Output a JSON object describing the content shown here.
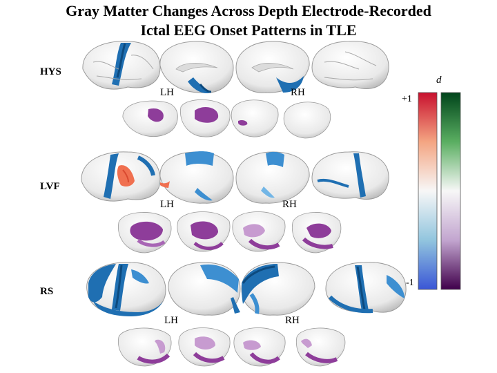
{
  "figure": {
    "title_line1": "Gray Matter Changes Across Depth Electrode-Recorded",
    "title_line2": "Ictal EEG Onset Patterns in TLE"
  },
  "rows": [
    {
      "label": "HYS",
      "lh": "LH",
      "rh": "RH"
    },
    {
      "label": "LVF",
      "lh": "LH",
      "rh": "RH"
    },
    {
      "label": "RS",
      "lh": "LH",
      "rh": "RH"
    }
  ],
  "colorbar": {
    "symbol": "d",
    "max_label": "+1",
    "min_label": "-1",
    "cortical_scale": [
      "#d7191c",
      "#f4a582",
      "#f7f7f7",
      "#92c5de",
      "#2c4fd8"
    ],
    "subcortical_scale": [
      "#00441b",
      "#5aae61",
      "#f7f7f7",
      "#c2a5cf",
      "#40004b"
    ]
  },
  "colors": {
    "atrophy_cortex": "#1f6fb2",
    "atrophy_cortex_dark": "#0d4a7e",
    "increase_cortex": "#f07050",
    "subcortical_atrophy": "#8e3d9a",
    "subcortical_light": "#c79bd0"
  }
}
